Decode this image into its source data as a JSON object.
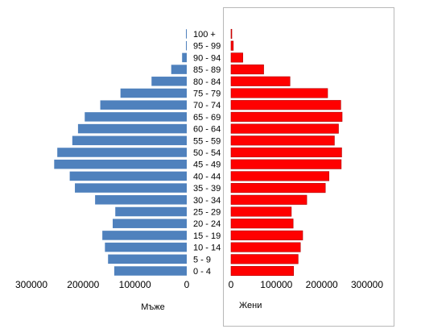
{
  "chart_data": {
    "type": "bar",
    "orientation": "horizontal",
    "subtype": "population-pyramid",
    "categories": [
      "0 - 4",
      "5 - 9",
      "10 - 14",
      "15 - 19",
      "20 - 24",
      "25 - 29",
      "30 - 34",
      "35 - 39",
      "40 - 44",
      "45 - 49",
      "50 - 54",
      "55 - 59",
      "60 - 64",
      "65 - 69",
      "70 - 74",
      "75 - 79",
      "80 - 84",
      "85 - 89",
      "90 - 94",
      "95 - 99",
      "100 +"
    ],
    "series": [
      {
        "name": "Мъже",
        "side": "left",
        "color": "#4F81BD",
        "values": [
          140000,
          152000,
          158000,
          163000,
          143000,
          138000,
          177000,
          216000,
          226000,
          256000,
          250000,
          221000,
          210000,
          197000,
          167000,
          128000,
          68000,
          30000,
          9000,
          1500,
          500
        ]
      },
      {
        "name": "Жени",
        "side": "right",
        "color": "#FF0000",
        "values": [
          138000,
          148000,
          153000,
          158000,
          137000,
          133000,
          167000,
          208000,
          216000,
          243000,
          244000,
          228000,
          237000,
          245000,
          242000,
          213000,
          130000,
          72000,
          26000,
          5000,
          1600
        ]
      }
    ],
    "left_axis": {
      "ticks": [
        300000,
        200000,
        100000,
        0
      ],
      "range": [
        0,
        300000
      ],
      "label": "Мъже"
    },
    "right_axis": {
      "ticks": [
        0,
        100000,
        200000,
        300000
      ],
      "range": [
        0,
        300000
      ],
      "label": "Жени"
    },
    "title": "",
    "grid": false,
    "legend": "none"
  }
}
